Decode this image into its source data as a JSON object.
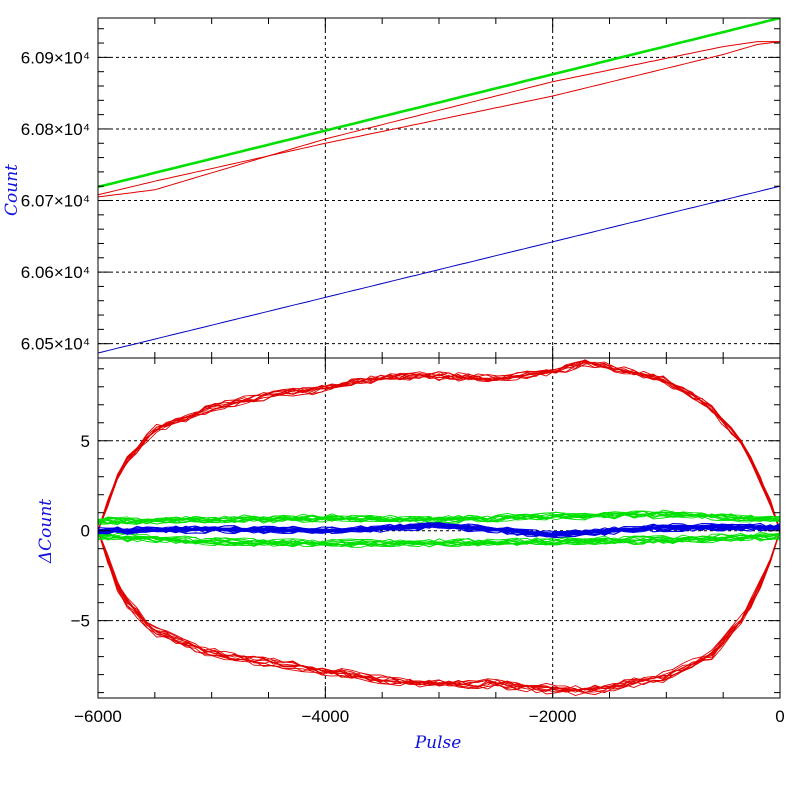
{
  "chart_data": [
    {
      "type": "line",
      "panel": "top",
      "xlabel": "Pulse",
      "ylabel": "Count",
      "xlim": [
        -6000,
        0
      ],
      "ylim": [
        60480,
        60955
      ],
      "xticks": [
        -6000,
        -4000,
        -2000,
        0
      ],
      "yticks": [
        60500,
        60600,
        60700,
        60800,
        60900
      ],
      "ytick_labels": [
        "6.05×10⁴",
        "6.06×10⁴",
        "6.07×10⁴",
        "6.08×10⁴",
        "6.09×10⁴"
      ],
      "grid": true,
      "series": [
        {
          "color": "#00e000",
          "x": [
            -6000,
            0
          ],
          "y": [
            60719,
            60955
          ]
        },
        {
          "color": "#e00000",
          "x": [
            -6000,
            -5500,
            -4000,
            -2000,
            -500,
            -200,
            0
          ],
          "y": [
            60705,
            60715,
            60786,
            60866,
            60915,
            60922,
            60922
          ]
        },
        {
          "color": "#e00000",
          "x": [
            -6000,
            -5500,
            -4000,
            -2000,
            -500,
            -200,
            0
          ],
          "y": [
            60708,
            60727,
            60780,
            60846,
            60904,
            60918,
            60922
          ]
        },
        {
          "color": "#0000c0",
          "x": [
            -6000,
            0
          ],
          "y": [
            60487,
            60720
          ]
        }
      ]
    },
    {
      "type": "line",
      "panel": "bottom",
      "xlabel": "Pulse",
      "ylabel": "ΔCount",
      "xlim": [
        -6000,
        0
      ],
      "ylim": [
        -9.3,
        9.6
      ],
      "xticks": [
        -6000,
        -4000,
        -2000,
        0
      ],
      "xtick_labels": [
        "−6000",
        "−4000",
        "−2000",
        "0"
      ],
      "yticks": [
        -5,
        0,
        5
      ],
      "ytick_labels": [
        "−5",
        "0",
        "5"
      ],
      "grid": true,
      "series": [
        {
          "color": "#e00000",
          "x": [
            -6000,
            -5800,
            -5500,
            -5000,
            -4500,
            -4000,
            -3500,
            -3000,
            -2500,
            -2000,
            -1700,
            -1500,
            -1000,
            -600,
            -300,
            -100,
            0
          ],
          "y": [
            0,
            3.5,
            5.6,
            6.8,
            7.5,
            7.9,
            8.5,
            8.6,
            8.4,
            8.8,
            9.3,
            9.1,
            8.3,
            6.8,
            4.5,
            1.8,
            0
          ]
        },
        {
          "color": "#e00000",
          "x": [
            -6000,
            -5800,
            -5500,
            -5000,
            -4500,
            -4000,
            -3500,
            -3000,
            -2500,
            -2000,
            -1700,
            -1500,
            -1000,
            -600,
            -300,
            -100,
            0
          ],
          "y": [
            0,
            -3.6,
            -5.6,
            -6.8,
            -7.3,
            -7.8,
            -8.3,
            -8.5,
            -8.5,
            -8.8,
            -8.9,
            -8.7,
            -8.1,
            -6.9,
            -4.6,
            -2,
            0
          ]
        },
        {
          "color": "#00e000",
          "x": [
            -6000,
            -5000,
            -4000,
            -3000,
            -2000,
            -1000,
            0
          ],
          "y": [
            0.5,
            0.6,
            0.7,
            0.6,
            0.8,
            0.9,
            0.6
          ]
        },
        {
          "color": "#00e000",
          "x": [
            -6000,
            -5000,
            -4000,
            -3000,
            -2000,
            -1000,
            0
          ],
          "y": [
            -0.3,
            -0.6,
            -0.7,
            -0.7,
            -0.6,
            -0.5,
            -0.3
          ]
        },
        {
          "color": "#0000e0",
          "x": [
            -6000,
            -5000,
            -4000,
            -3000,
            -2000,
            -1000,
            0
          ],
          "y": [
            0,
            0.1,
            0,
            0.3,
            -0.2,
            0.2,
            0.2
          ]
        }
      ]
    }
  ]
}
